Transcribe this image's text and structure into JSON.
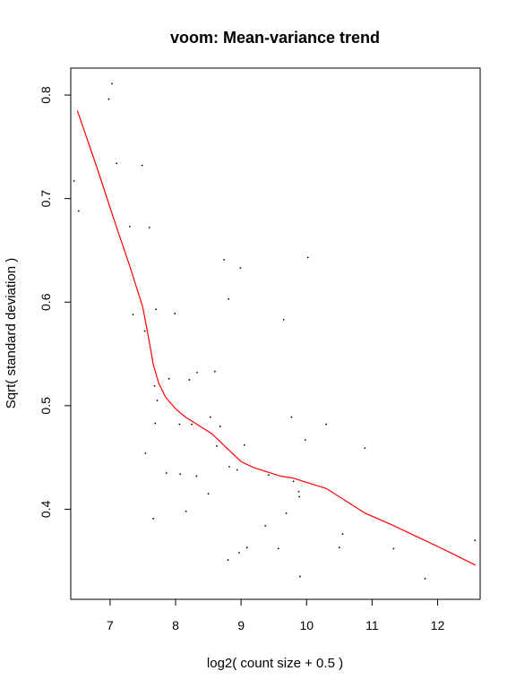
{
  "chart_data": {
    "type": "scatter",
    "title": "voom: Mean-variance trend",
    "xlabel": "log2( count size + 0.5 )",
    "ylabel": "Sqrt( standard deviation )",
    "xlim": [
      6.4,
      12.65
    ],
    "ylim": [
      0.313,
      0.826
    ],
    "xticks": [
      "7",
      "8",
      "9",
      "10",
      "11",
      "12"
    ],
    "yticks": [
      "0.4",
      "0.5",
      "0.6",
      "0.7",
      "0.8"
    ],
    "grid": false,
    "legend": "none",
    "colors": {
      "points": "#000000",
      "trend": "#ff0000",
      "axes": "#000000"
    },
    "points": [
      {
        "x": 6.45,
        "y": 0.717
      },
      {
        "x": 6.52,
        "y": 0.688
      },
      {
        "x": 6.98,
        "y": 0.796
      },
      {
        "x": 7.03,
        "y": 0.811
      },
      {
        "x": 7.1,
        "y": 0.734
      },
      {
        "x": 7.3,
        "y": 0.673
      },
      {
        "x": 7.35,
        "y": 0.588
      },
      {
        "x": 7.49,
        "y": 0.732
      },
      {
        "x": 7.53,
        "y": 0.572
      },
      {
        "x": 7.54,
        "y": 0.454
      },
      {
        "x": 7.6,
        "y": 0.672
      },
      {
        "x": 7.66,
        "y": 0.391
      },
      {
        "x": 7.68,
        "y": 0.519
      },
      {
        "x": 7.69,
        "y": 0.483
      },
      {
        "x": 7.7,
        "y": 0.593
      },
      {
        "x": 7.72,
        "y": 0.505
      },
      {
        "x": 7.86,
        "y": 0.435
      },
      {
        "x": 7.9,
        "y": 0.526
      },
      {
        "x": 7.99,
        "y": 0.589
      },
      {
        "x": 8.06,
        "y": 0.482
      },
      {
        "x": 8.07,
        "y": 0.434
      },
      {
        "x": 8.16,
        "y": 0.398
      },
      {
        "x": 8.21,
        "y": 0.525
      },
      {
        "x": 8.25,
        "y": 0.482
      },
      {
        "x": 8.32,
        "y": 0.432
      },
      {
        "x": 8.33,
        "y": 0.532
      },
      {
        "x": 8.5,
        "y": 0.415
      },
      {
        "x": 8.53,
        "y": 0.489
      },
      {
        "x": 8.6,
        "y": 0.533
      },
      {
        "x": 8.63,
        "y": 0.461
      },
      {
        "x": 8.68,
        "y": 0.48
      },
      {
        "x": 8.74,
        "y": 0.641
      },
      {
        "x": 8.8,
        "y": 0.351
      },
      {
        "x": 8.81,
        "y": 0.603
      },
      {
        "x": 8.82,
        "y": 0.441
      },
      {
        "x": 8.94,
        "y": 0.438
      },
      {
        "x": 8.97,
        "y": 0.358
      },
      {
        "x": 8.99,
        "y": 0.633
      },
      {
        "x": 9.05,
        "y": 0.462
      },
      {
        "x": 9.09,
        "y": 0.363
      },
      {
        "x": 9.37,
        "y": 0.384
      },
      {
        "x": 9.42,
        "y": 0.433
      },
      {
        "x": 9.57,
        "y": 0.362
      },
      {
        "x": 9.65,
        "y": 0.583
      },
      {
        "x": 9.69,
        "y": 0.396
      },
      {
        "x": 9.77,
        "y": 0.489
      },
      {
        "x": 9.8,
        "y": 0.427
      },
      {
        "x": 9.88,
        "y": 0.417
      },
      {
        "x": 9.89,
        "y": 0.412
      },
      {
        "x": 9.9,
        "y": 0.335
      },
      {
        "x": 9.98,
        "y": 0.467
      },
      {
        "x": 10.02,
        "y": 0.643
      },
      {
        "x": 10.3,
        "y": 0.482
      },
      {
        "x": 10.5,
        "y": 0.363
      },
      {
        "x": 10.55,
        "y": 0.376
      },
      {
        "x": 10.89,
        "y": 0.459
      },
      {
        "x": 11.33,
        "y": 0.362
      },
      {
        "x": 11.81,
        "y": 0.333
      },
      {
        "x": 12.57,
        "y": 0.37
      }
    ],
    "trend": [
      {
        "x": 6.5,
        "y": 0.785
      },
      {
        "x": 6.8,
        "y": 0.73
      },
      {
        "x": 7.1,
        "y": 0.672
      },
      {
        "x": 7.3,
        "y": 0.635
      },
      {
        "x": 7.5,
        "y": 0.595
      },
      {
        "x": 7.58,
        "y": 0.568
      },
      {
        "x": 7.66,
        "y": 0.54
      },
      {
        "x": 7.74,
        "y": 0.522
      },
      {
        "x": 7.85,
        "y": 0.508
      },
      {
        "x": 8.0,
        "y": 0.497
      },
      {
        "x": 8.15,
        "y": 0.489
      },
      {
        "x": 8.35,
        "y": 0.481
      },
      {
        "x": 8.55,
        "y": 0.473
      },
      {
        "x": 8.75,
        "y": 0.461
      },
      {
        "x": 9.0,
        "y": 0.446
      },
      {
        "x": 9.2,
        "y": 0.44
      },
      {
        "x": 9.4,
        "y": 0.436
      },
      {
        "x": 9.6,
        "y": 0.432
      },
      {
        "x": 9.8,
        "y": 0.43
      },
      {
        "x": 10.0,
        "y": 0.426
      },
      {
        "x": 10.3,
        "y": 0.42
      },
      {
        "x": 10.6,
        "y": 0.408
      },
      {
        "x": 10.9,
        "y": 0.396
      },
      {
        "x": 11.3,
        "y": 0.385
      },
      {
        "x": 11.7,
        "y": 0.373
      },
      {
        "x": 12.1,
        "y": 0.361
      },
      {
        "x": 12.58,
        "y": 0.346
      }
    ]
  }
}
